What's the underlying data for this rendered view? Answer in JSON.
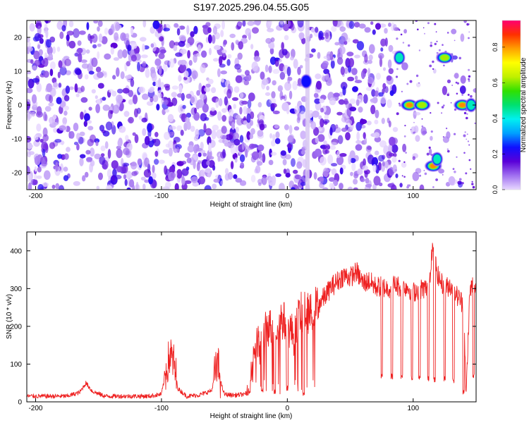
{
  "figure_title": "S197.2025.296.04.55.G05",
  "chart_data": [
    {
      "type": "heatmap",
      "title": "S197.2025.296.04.55.G05",
      "xlabel": "Height of straight line (km)",
      "ylabel": "Frequency (Hz)",
      "xlim": [
        -207,
        150
      ],
      "ylim": [
        -25,
        25
      ],
      "xticks": [
        -200,
        -100,
        0,
        100
      ],
      "yticks": [
        -20,
        -10,
        0,
        10,
        20
      ],
      "colorbar": {
        "label": "Normalized spectral amplitude",
        "range": [
          0,
          0.95
        ],
        "ticks": [
          0.0,
          0.2,
          0.4,
          0.6,
          0.8
        ],
        "colors": [
          "#e8d8ff",
          "#a070f0",
          "#5a00d8",
          "#1010ff",
          "#00a0ff",
          "#00f0f0",
          "#00e070",
          "#30e000",
          "#c0f000",
          "#ffff00",
          "#ffa000",
          "#ff3000",
          "#ff0070"
        ]
      },
      "features": [
        {
          "label": "vertical stripe",
          "x": 16,
          "freq_range": [
            -25,
            25
          ]
        },
        {
          "label": "spot",
          "x": 15,
          "freq": 7,
          "amplitude": 0.35
        },
        {
          "label": "spot",
          "x": 89,
          "freq": 14,
          "amplitude": 0.5
        },
        {
          "label": "spot",
          "x": 97,
          "freq": 0,
          "amplitude": 0.9
        },
        {
          "label": "spot",
          "x": 107,
          "freq": 0,
          "amplitude": 0.6
        },
        {
          "label": "spot",
          "x": 116,
          "freq": -18,
          "amplitude": 0.9
        },
        {
          "label": "spot",
          "x": 119,
          "freq": -16,
          "amplitude": 0.4
        },
        {
          "label": "spot",
          "x": 125,
          "freq": 14,
          "amplitude": 0.6
        },
        {
          "label": "spot",
          "x": 139,
          "freq": 0,
          "amplitude": 0.9
        },
        {
          "label": "spot",
          "x": 146,
          "freq": 0,
          "amplitude": 0.55
        }
      ]
    },
    {
      "type": "line",
      "xlabel": "Height of straight line (km)",
      "ylabel": "SNR (10 * v/v)",
      "xlim": [
        -207,
        150
      ],
      "ylim": [
        0,
        450
      ],
      "xticks": [
        -200,
        -100,
        0,
        100
      ],
      "yticks": [
        0,
        100,
        200,
        300,
        400
      ],
      "series": [
        {
          "name": "SNR",
          "color": "#ee2020",
          "x": [
            -207,
            -190,
            -175,
            -165,
            -160,
            -155,
            -145,
            -130,
            -110,
            -100,
            -96,
            -93,
            -90,
            -87,
            -80,
            -70,
            -60,
            -58,
            -55,
            -52,
            -50,
            -45,
            -40,
            -35,
            -30,
            -28,
            -25,
            -22,
            -20,
            -15,
            -10,
            -5,
            0,
            5,
            10,
            15,
            18,
            20,
            25,
            30,
            35,
            40,
            45,
            50,
            55,
            60,
            65,
            70,
            75,
            80,
            85,
            90,
            95,
            100,
            105,
            110,
            113,
            115,
            120,
            125,
            130,
            135,
            140,
            142,
            145,
            148,
            150
          ],
          "y": [
            15,
            15,
            15,
            25,
            50,
            28,
            15,
            15,
            15,
            20,
            90,
            125,
            100,
            35,
            15,
            18,
            30,
            70,
            95,
            40,
            20,
            18,
            18,
            20,
            25,
            110,
            160,
            140,
            170,
            200,
            185,
            220,
            205,
            175,
            235,
            240,
            230,
            245,
            260,
            280,
            305,
            320,
            335,
            330,
            345,
            315,
            320,
            305,
            305,
            300,
            310,
            305,
            305,
            290,
            300,
            300,
            320,
            410,
            330,
            300,
            310,
            280,
            260,
            15,
            290,
            320,
            300
          ]
        }
      ],
      "dropouts": [
        {
          "x": -30,
          "low": 20
        },
        {
          "x": -20,
          "low": 25
        },
        {
          "x": -10,
          "low": 20
        },
        {
          "x": 0,
          "low": 30
        },
        {
          "x": 13,
          "low": 15
        },
        {
          "x": 75,
          "low": 60
        },
        {
          "x": 83,
          "low": 60
        },
        {
          "x": 91,
          "low": 60
        },
        {
          "x": 99,
          "low": 55
        },
        {
          "x": 105,
          "low": 55
        },
        {
          "x": 112,
          "low": 55
        },
        {
          "x": 117,
          "low": 50
        },
        {
          "x": 125,
          "low": 55
        },
        {
          "x": 132,
          "low": 50
        },
        {
          "x": 140,
          "low": 20
        },
        {
          "x": 148,
          "low": 60
        }
      ]
    }
  ]
}
